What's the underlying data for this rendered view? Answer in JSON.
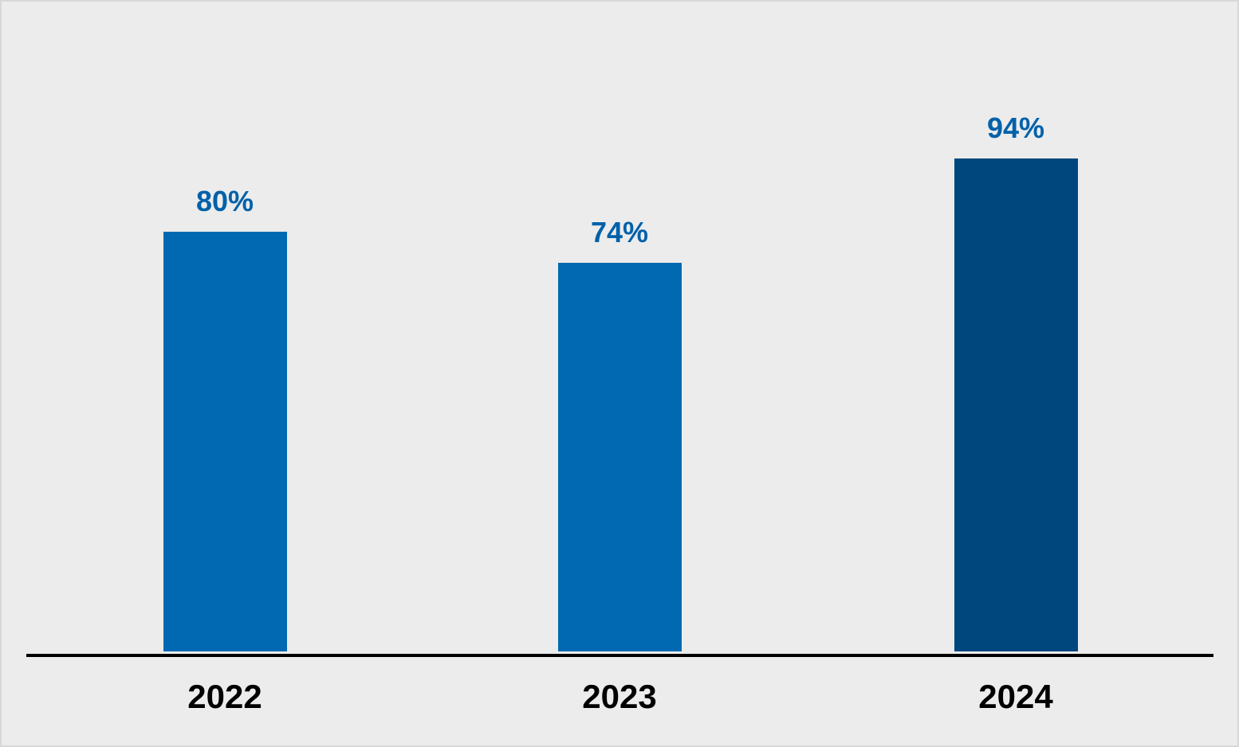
{
  "chart_data": {
    "type": "bar",
    "categories": [
      "2022",
      "2023",
      "2024"
    ],
    "values": [
      80,
      74,
      94
    ],
    "value_labels": [
      "80%",
      "74%",
      "94%"
    ],
    "title": "",
    "xlabel": "",
    "ylabel": "",
    "ylim": [
      0,
      100
    ],
    "grid": false,
    "legend": null,
    "layout_hints": {
      "value_labels_position": "above-bars",
      "category_labels_position": "below-axis",
      "baseline_axis": "x-axis only, no y-axis, no ticks"
    },
    "colors": {
      "bar_colors": [
        "#0069b1",
        "#0069b1",
        "#00477e"
      ],
      "value_label_color": "#0061a9",
      "category_label_color": "#000000",
      "axis_line_color": "#000000",
      "background_color": "#ececec",
      "border_color": "#d8d8d8"
    }
  }
}
